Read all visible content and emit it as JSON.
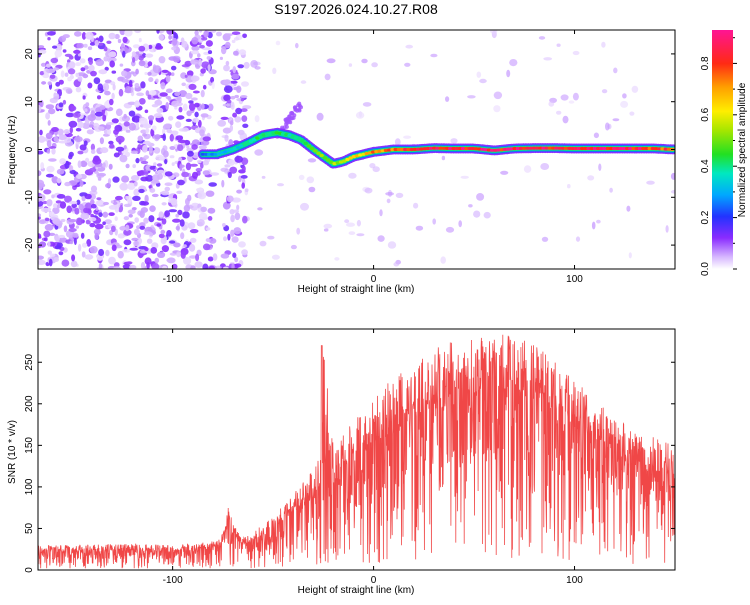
{
  "chart_data": [
    {
      "type": "heatmap",
      "title": "S197.2026.024.10.27.R08",
      "xlabel": "Height of straight line (km)",
      "ylabel": "Frequency (Hz)",
      "xlim": [
        -167,
        150
      ],
      "ylim": [
        -25,
        25
      ],
      "xticks": [
        -100,
        0,
        100
      ],
      "yticks": [
        -20,
        -10,
        0,
        10,
        20
      ],
      "colorbar": {
        "label": "Normalized spectral amplitude",
        "range": [
          0,
          0.93
        ],
        "ticks": [
          0,
          0.2,
          0.4,
          0.6,
          0.8
        ],
        "tick_labels": [
          "0.0",
          "0.2",
          "0.4",
          "0.6",
          "0.8"
        ]
      },
      "ridge": {
        "name": "spectral peak frequency",
        "x": [
          -85,
          -78,
          -70,
          -62,
          -55,
          -48,
          -42,
          -36,
          -30,
          -25,
          -20,
          -15,
          -10,
          -5,
          0,
          10,
          20,
          30,
          40,
          50,
          60,
          70,
          80,
          90,
          100,
          110,
          120,
          130,
          140,
          150
        ],
        "y": [
          -1,
          -1,
          0,
          1.5,
          3,
          3.5,
          3,
          2,
          0,
          -1.5,
          -3,
          -2.5,
          -1.5,
          -1,
          -0.5,
          0,
          0,
          0.3,
          0.2,
          0.2,
          -0.2,
          0.2,
          0.3,
          0.3,
          0.2,
          0.2,
          0.2,
          0.2,
          0.2,
          0
        ],
        "amplitude": [
          0.25,
          0.3,
          0.35,
          0.4,
          0.45,
          0.45,
          0.4,
          0.45,
          0.5,
          0.55,
          0.55,
          0.6,
          0.65,
          0.7,
          0.75,
          0.8,
          0.85,
          0.9,
          0.9,
          0.9,
          0.9,
          0.9,
          0.9,
          0.9,
          0.9,
          0.9,
          0.9,
          0.9,
          0.85,
          0.8
        ]
      }
    },
    {
      "type": "line",
      "title": "",
      "xlabel": "Height of straight line (km)",
      "ylabel": "SNR (10 * v/v)",
      "xlim": [
        -167,
        150
      ],
      "ylim": [
        0,
        290
      ],
      "xticks": [
        -100,
        0,
        100
      ],
      "yticks": [
        0,
        50,
        100,
        150,
        200,
        250
      ],
      "series": [
        {
          "name": "SNR envelope",
          "color": "#ee3333",
          "x": [
            -167,
            -150,
            -120,
            -100,
            -80,
            -75,
            -72,
            -70,
            -65,
            -60,
            -55,
            -50,
            -45,
            -40,
            -35,
            -30,
            -26,
            -25,
            -20,
            -10,
            0,
            10,
            20,
            30,
            40,
            50,
            60,
            70,
            80,
            90,
            100,
            110,
            120,
            130,
            140,
            150
          ],
          "upper": [
            30,
            30,
            32,
            30,
            35,
            45,
            80,
            55,
            40,
            45,
            55,
            65,
            80,
            90,
            110,
            120,
            140,
            270,
            150,
            180,
            205,
            235,
            250,
            265,
            278,
            282,
            285,
            282,
            270,
            255,
            230,
            205,
            185,
            165,
            160,
            150
          ],
          "lower": [
            12,
            12,
            12,
            12,
            15,
            20,
            28,
            25,
            18,
            18,
            20,
            25,
            30,
            35,
            45,
            55,
            60,
            65,
            65,
            70,
            80,
            90,
            100,
            110,
            120,
            125,
            130,
            130,
            125,
            115,
            100,
            90,
            80,
            70,
            65,
            60
          ]
        }
      ]
    }
  ]
}
